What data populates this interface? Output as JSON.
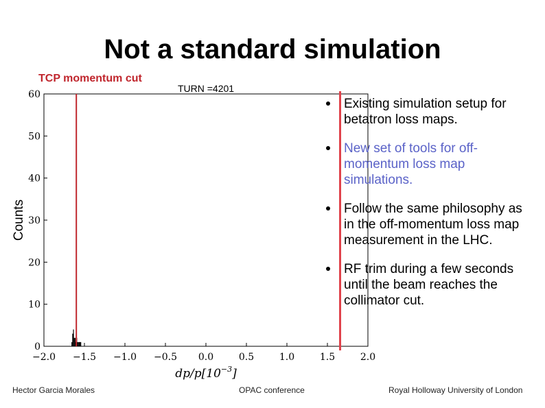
{
  "slide": {
    "title": "Not a standard simulation",
    "subtitle": "TCP momentum cut"
  },
  "chart_data": {
    "type": "bar",
    "title": "TURN =4201",
    "xlabel": "dp/p[10^-3]",
    "xlabel_parts": [
      "dp/p[10",
      "−3",
      "]"
    ],
    "ylabel": "Counts",
    "xlim": [
      -2.0,
      2.0
    ],
    "ylim": [
      0,
      60
    ],
    "x_ticks": [
      -2.0,
      -1.5,
      -1.0,
      -0.5,
      0.0,
      0.5,
      1.0,
      1.5,
      2.0
    ],
    "x_tick_labels": [
      "−2.0",
      "−1.5",
      "−1.0",
      "−0.5",
      "0.0",
      "0.5",
      "1.0",
      "1.5",
      "2.0"
    ],
    "y_ticks": [
      0,
      10,
      20,
      30,
      40,
      50,
      60
    ],
    "y_tick_labels": [
      "0",
      "10",
      "20",
      "30",
      "40",
      "50",
      "60"
    ],
    "histogram": {
      "bin_width": 0.01,
      "bins": [
        {
          "x": -1.66,
          "count": 1
        },
        {
          "x": -1.65,
          "count": 3
        },
        {
          "x": -1.64,
          "count": 4
        },
        {
          "x": -1.63,
          "count": 2
        },
        {
          "x": -1.62,
          "count": 2
        },
        {
          "x": -1.61,
          "count": 1
        },
        {
          "x": -1.6,
          "count": 2
        },
        {
          "x": -1.59,
          "count": 1
        },
        {
          "x": -1.58,
          "count": 1
        },
        {
          "x": -1.57,
          "count": 1
        },
        {
          "x": -1.56,
          "count": 1
        },
        {
          "x": -1.55,
          "count": 1
        }
      ]
    },
    "cut_line_x": -1.6,
    "cut_line_color": "#c0262d",
    "bar_color": "#000000"
  },
  "bullets": [
    {
      "text": "Existing simulation setup for betatron loss maps.",
      "accent": false
    },
    {
      "text": "New set of tools for off-momentum loss map simulations.",
      "accent": true
    },
    {
      "text": "Follow the same philosophy as in the off-momentum loss map measurement in the LHC.",
      "accent": false
    },
    {
      "text": "RF trim during a few seconds until the beam reaches the collimator cut.",
      "accent": false
    }
  ],
  "colors": {
    "accent_text": "#5b63c8",
    "red": "#e0434b"
  },
  "footer": {
    "author": "Hector Garcia Morales",
    "event": "OPAC conference",
    "affiliation": "Royal Holloway University of London"
  }
}
